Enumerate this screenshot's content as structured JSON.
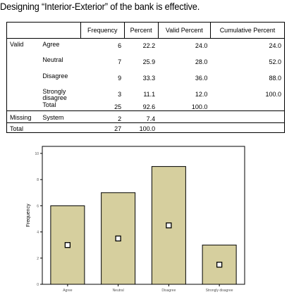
{
  "title": "Designing “Interior-Exterior” of the bank is effective.",
  "table": {
    "headers": [
      "Frequency",
      "Percent",
      "Valid Percent",
      "Cumulative Percent"
    ],
    "rows": [
      {
        "group": "Valid",
        "label": "Agree",
        "frequency": "6",
        "percent": "22.2",
        "valid_percent": "24.0",
        "cumulative": "24.0"
      },
      {
        "group": "",
        "label": "Neutral",
        "frequency": "7",
        "percent": "25.9",
        "valid_percent": "28.0",
        "cumulative": "52.0"
      },
      {
        "group": "",
        "label": "Disagree",
        "frequency": "9",
        "percent": "33.3",
        "valid_percent": "36.0",
        "cumulative": "88.0"
      },
      {
        "group": "",
        "label": "Strongly disagree",
        "frequency": "3",
        "percent": "11.1",
        "valid_percent": "12.0",
        "cumulative": "100.0"
      },
      {
        "group": "",
        "label": "Total",
        "frequency": "25",
        "percent": "92.6",
        "valid_percent": "100.0",
        "cumulative": ""
      },
      {
        "group": "Missing",
        "label": "System",
        "frequency": "2",
        "percent": "7.4",
        "valid_percent": "",
        "cumulative": ""
      },
      {
        "group": "Total",
        "label": "",
        "frequency": "27",
        "percent": "100.0",
        "valid_percent": "",
        "cumulative": ""
      }
    ]
  },
  "chart_data": {
    "type": "bar",
    "categories": [
      "Agree",
      "Neutral",
      "Disagree",
      "Strongly disagree"
    ],
    "values": [
      6,
      7,
      9,
      3
    ],
    "marker_values": [
      3,
      3.5,
      4.5,
      1.5
    ],
    "ylabel": "Frequency",
    "xlabel": "",
    "ylim": [
      0,
      10
    ],
    "yticks": [
      "0",
      "2",
      "4",
      "6",
      "8",
      "10"
    ],
    "grid": false,
    "bar_color": "#d6cf9e",
    "border_color": "#000000"
  }
}
